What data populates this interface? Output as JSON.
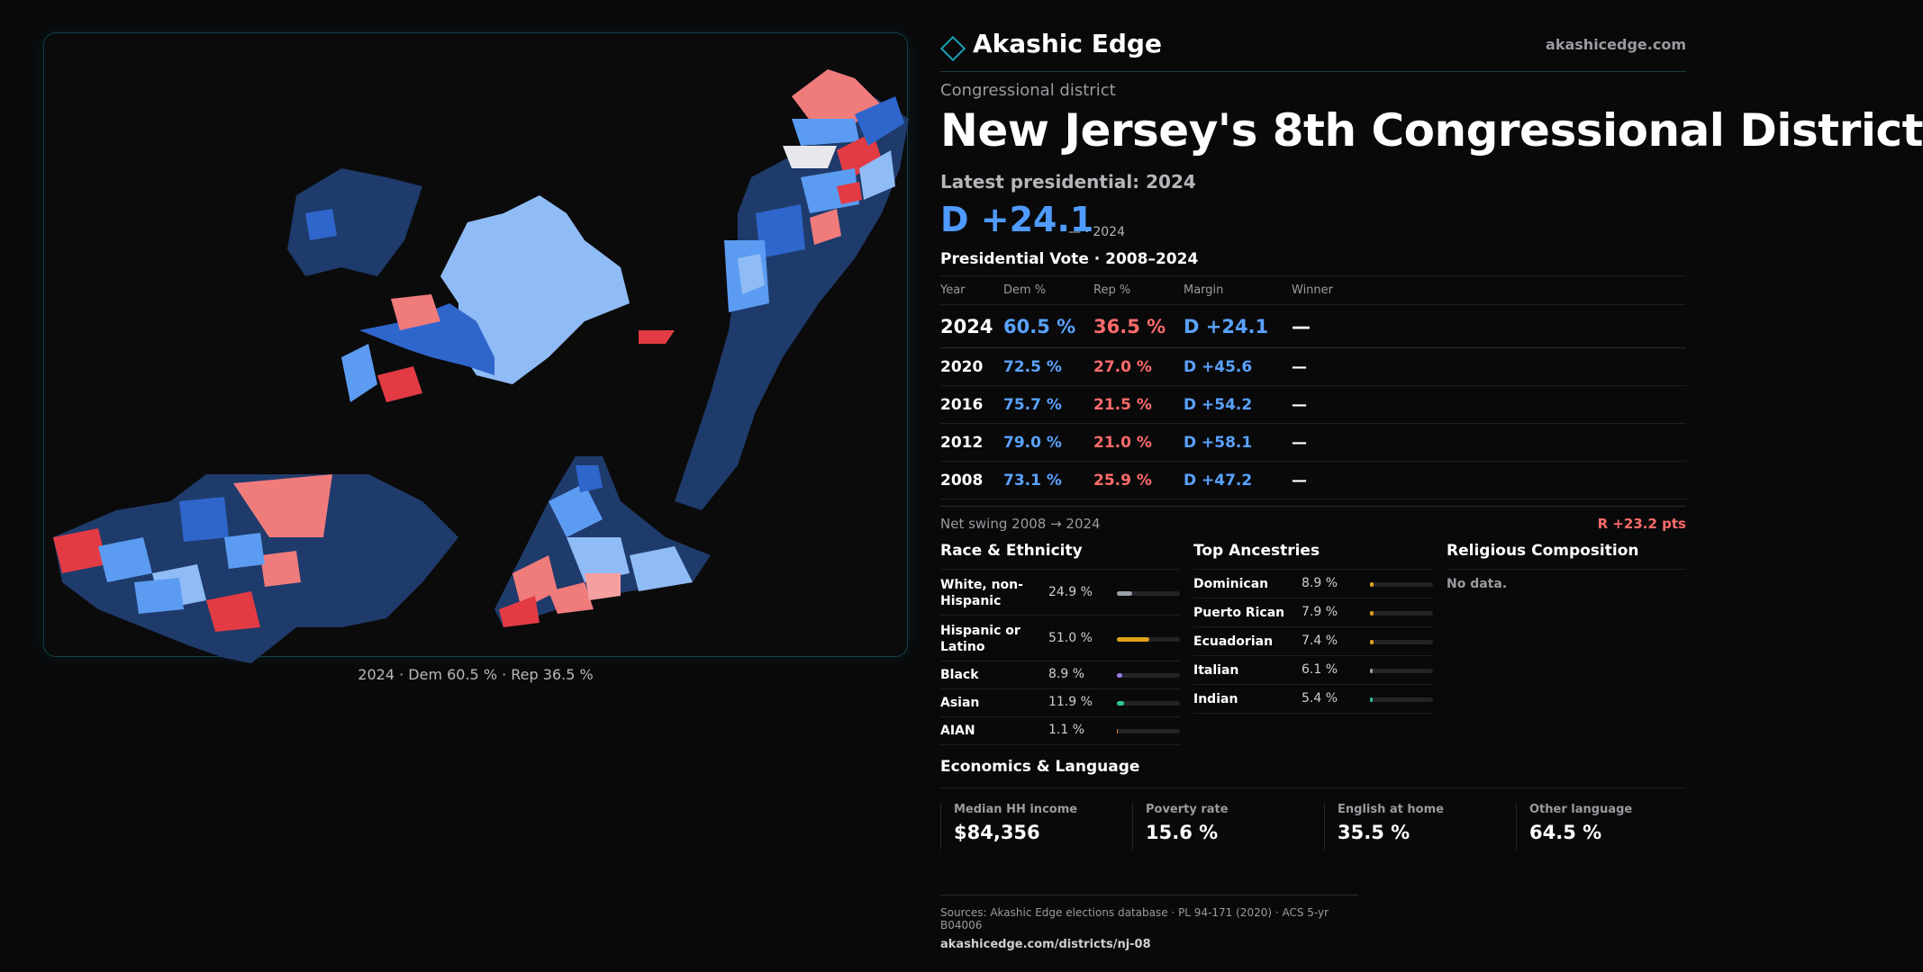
{
  "map": {
    "caption": "2024 · Dem 60.5 % · Rep 36.5 %",
    "colors": {
      "background": "#0b0b0c",
      "safe_dem": "#1f3b6b",
      "likely_dem": "#2f66cc",
      "lean_dem": "#5b9cf2",
      "tilt_dem": "#8fbcf5",
      "lean_rep": "#f07b7b",
      "safe_rep": "#e23b44",
      "water": "#0b0b0c"
    }
  },
  "brand": {
    "name": "Akashic Edge",
    "url": "akashicedge.com"
  },
  "district": {
    "kicker": "Congressional district",
    "title": "New Jersey's 8th Congressional District",
    "latest_label": "Latest presidential: 2024",
    "latest_margin": "D +24.1",
    "latest_sub": "— · 2024"
  },
  "votes": {
    "title": "Presidential Vote · 2008–2024",
    "headers": [
      "Year",
      "Dem %",
      "Rep %",
      "Margin",
      "Winner"
    ],
    "rows": [
      [
        "2024",
        "60.5 %",
        "36.5 %",
        "D +24.1",
        "—"
      ],
      [
        "2020",
        "72.5 %",
        "27.0 %",
        "D +45.6",
        "—"
      ],
      [
        "2016",
        "75.7 %",
        "21.5 %",
        "D +54.2",
        "—"
      ],
      [
        "2012",
        "79.0 %",
        "21.0 %",
        "D +58.1",
        "—"
      ],
      [
        "2008",
        "73.1 %",
        "25.9 %",
        "D +47.2",
        "—"
      ]
    ],
    "swing_label": "Net swing 2008 → 2024",
    "swing_value": "R +23.2 pts"
  },
  "race": {
    "title": "Race & Ethnicity",
    "rows": [
      {
        "name": "White, non-Hispanic",
        "value": "24.9 %",
        "share": 0.249,
        "color": "#9aa0a8"
      },
      {
        "name": "Hispanic or Latino",
        "value": "51.0 %",
        "share": 0.51,
        "color": "#e0a21a"
      },
      {
        "name": "Black",
        "value": "8.9 %",
        "share": 0.089,
        "color": "#9a7be0"
      },
      {
        "name": "Asian",
        "value": "11.9 %",
        "share": 0.119,
        "color": "#2ec59a"
      },
      {
        "name": "AIAN",
        "value": "1.1 %",
        "share": 0.011,
        "color": "#e07a3a"
      }
    ]
  },
  "ancestry": {
    "title": "Top Ancestries",
    "rows": [
      {
        "name": "Dominican",
        "value": "8.9 %",
        "share": 0.089,
        "color": "#e0a21a"
      },
      {
        "name": "Puerto Rican",
        "value": "7.9 %",
        "share": 0.079,
        "color": "#e0a21a"
      },
      {
        "name": "Ecuadorian",
        "value": "7.4 %",
        "share": 0.074,
        "color": "#e0a21a"
      },
      {
        "name": "Italian",
        "value": "6.1 %",
        "share": 0.061,
        "color": "#9aa0a8"
      },
      {
        "name": "Indian",
        "value": "5.4 %",
        "share": 0.054,
        "color": "#2ec59a"
      }
    ]
  },
  "religion": {
    "title": "Religious Composition",
    "empty": "No data."
  },
  "economics": {
    "title": "Economics & Language",
    "stats": [
      {
        "label": "Median HH income",
        "value": "$84,356"
      },
      {
        "label": "Poverty rate",
        "value": "15.6 %"
      },
      {
        "label": "English at home",
        "value": "35.5 %"
      },
      {
        "label": "Other language",
        "value": "64.5 %"
      }
    ]
  },
  "footer": {
    "sources": "Sources: Akashic Edge elections database · PL 94-171 (2020) · ACS 5-yr B04006",
    "url": "akashicedge.com/districts/nj-08"
  }
}
